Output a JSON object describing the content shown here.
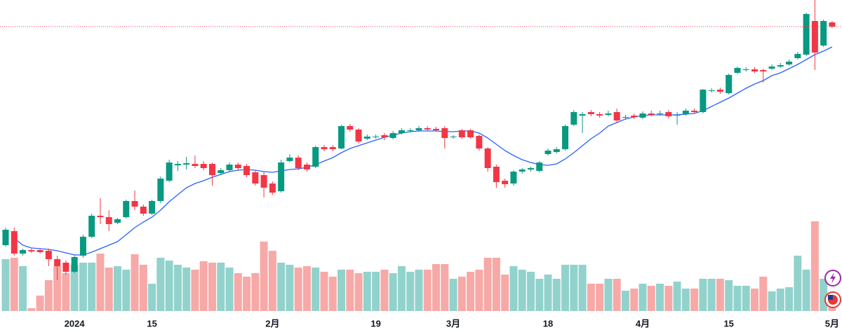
{
  "chart_data": {
    "type": "candlestick",
    "categories": [
      null,
      null,
      null,
      null,
      null,
      null,
      null,
      null,
      "2024",
      null,
      null,
      null,
      null,
      null,
      null,
      null,
      null,
      "15",
      null,
      null,
      null,
      null,
      null,
      null,
      null,
      null,
      null,
      null,
      null,
      null,
      null,
      "2月",
      null,
      null,
      null,
      null,
      null,
      null,
      null,
      null,
      null,
      null,
      null,
      "19",
      null,
      null,
      null,
      null,
      null,
      null,
      null,
      null,
      "3月",
      null,
      null,
      null,
      null,
      null,
      null,
      null,
      null,
      null,
      null,
      "18",
      null,
      null,
      null,
      null,
      null,
      null,
      null,
      null,
      null,
      null,
      "4月",
      null,
      null,
      null,
      null,
      null,
      null,
      null,
      null,
      null,
      "15",
      null,
      null,
      null,
      null,
      null,
      null,
      null,
      null,
      null,
      null,
      null,
      "5月"
    ],
    "open": [
      124,
      144,
      112,
      117,
      117,
      116,
      104,
      99,
      86,
      109,
      136,
      166,
      164,
      156,
      164,
      187,
      179,
      169,
      187,
      216,
      238,
      239,
      240,
      240,
      240,
      227,
      231,
      239,
      237,
      228,
      224,
      212,
      201,
      244,
      249,
      239,
      236,
      264,
      264,
      262,
      294,
      289,
      276,
      278,
      281,
      277,
      284,
      287,
      288,
      291,
      290,
      291,
      278,
      288,
      288,
      280,
      262,
      236,
      216,
      212,
      229,
      232,
      230,
      254,
      257,
      261,
      296,
      309,
      314,
      311,
      310,
      314,
      306,
      309,
      306,
      312,
      311,
      314,
      309,
      311,
      316,
      314,
      344,
      346,
      341,
      370,
      374,
      375,
      374,
      376,
      379,
      382,
      391,
      396,
      444,
      409,
      442
    ],
    "high": [
      149,
      149,
      119,
      119,
      119,
      119,
      109,
      102,
      109,
      139,
      169,
      191,
      174,
      163,
      189,
      202,
      182,
      189,
      222,
      246,
      244,
      250,
      252,
      244,
      242,
      234,
      242,
      242,
      240,
      231,
      229,
      215,
      246,
      254,
      252,
      242,
      266,
      267,
      267,
      296,
      297,
      291,
      282,
      282,
      284,
      287,
      291,
      291,
      294,
      294,
      293,
      294,
      281,
      290,
      290,
      282,
      264,
      239,
      219,
      231,
      234,
      236,
      244,
      262,
      264,
      296,
      317,
      314,
      317,
      314,
      316,
      319,
      310,
      312,
      315,
      316,
      316,
      317,
      314,
      319,
      319,
      347,
      348,
      349,
      369,
      379,
      378,
      378,
      376,
      382,
      384,
      389,
      400,
      456,
      474,
      446,
      444
    ],
    "low": [
      122,
      109,
      109,
      113,
      112,
      94,
      74,
      82,
      84,
      106,
      134,
      154,
      144,
      154,
      162,
      174,
      166,
      167,
      184,
      214,
      230,
      232,
      234,
      231,
      209,
      224,
      228,
      230,
      221,
      209,
      192,
      196,
      199,
      242,
      231,
      229,
      234,
      258,
      258,
      261,
      286,
      269,
      274,
      276,
      274,
      275,
      282,
      285,
      286,
      287,
      286,
      262,
      276,
      276,
      276,
      259,
      229,
      206,
      206,
      209,
      226,
      229,
      228,
      252,
      255,
      259,
      294,
      284,
      308,
      306,
      308,
      299,
      304,
      304,
      304,
      308,
      309,
      305,
      296,
      309,
      312,
      312,
      342,
      340,
      339,
      368,
      372,
      370,
      356,
      374,
      377,
      380,
      389,
      394,
      374,
      407,
      434
    ],
    "close": [
      146,
      112,
      117,
      115,
      114,
      104,
      94,
      86,
      107,
      136,
      166,
      164,
      154,
      161,
      187,
      179,
      169,
      187,
      219,
      242,
      240,
      241,
      237,
      234,
      224,
      231,
      239,
      234,
      224,
      212,
      206,
      199,
      242,
      249,
      234,
      232,
      264,
      261,
      261,
      294,
      289,
      272,
      279,
      279,
      278,
      284,
      288,
      288,
      291,
      289,
      288,
      277,
      279,
      278,
      278,
      262,
      234,
      214,
      211,
      229,
      232,
      234,
      242,
      259,
      261,
      294,
      314,
      311,
      311,
      309,
      312,
      302,
      307,
      307,
      312,
      310,
      312,
      308,
      310,
      316,
      314,
      346,
      345,
      343,
      367,
      377,
      375,
      372,
      372,
      379,
      381,
      386,
      397,
      454,
      399,
      444,
      436
    ],
    "volume": [
      74,
      76,
      64,
      4,
      22,
      44,
      64,
      54,
      66,
      69,
      69,
      82,
      62,
      64,
      59,
      81,
      66,
      39,
      76,
      72,
      66,
      62,
      59,
      71,
      69,
      69,
      62,
      54,
      49,
      54,
      99,
      86,
      69,
      66,
      62,
      64,
      62,
      56,
      49,
      59,
      59,
      54,
      56,
      56,
      59,
      54,
      64,
      56,
      59,
      59,
      67,
      67,
      46,
      49,
      56,
      59,
      76,
      76,
      52,
      64,
      59,
      56,
      46,
      52,
      46,
      66,
      66,
      66,
      39,
      39,
      46,
      46,
      29,
      32,
      39,
      36,
      39,
      36,
      42,
      32,
      32,
      46,
      46,
      46,
      44,
      36,
      36,
      32,
      49,
      28,
      32,
      34,
      79,
      59,
      128,
      46,
      24
    ],
    "ma": [
      null,
      134,
      124,
      120,
      119,
      118,
      116,
      113,
      110,
      110,
      114,
      119,
      124,
      129,
      139,
      149,
      157,
      164,
      174,
      186,
      196,
      206,
      212,
      216,
      221,
      225,
      229,
      231,
      232,
      231,
      229,
      228,
      230,
      232,
      233,
      235,
      239,
      244,
      249,
      256,
      262,
      266,
      270,
      274,
      278,
      281,
      284,
      286,
      287,
      287,
      287,
      286,
      286,
      287,
      287,
      284,
      277,
      268,
      259,
      252,
      246,
      242,
      239,
      238,
      240,
      247,
      256,
      266,
      276,
      284,
      294,
      299,
      304,
      307,
      309,
      310,
      310,
      310,
      310,
      311,
      312,
      316,
      322,
      328,
      334,
      341,
      348,
      354,
      359,
      366,
      370,
      376,
      382,
      389,
      396,
      401,
      407
    ],
    "ylim": [
      30,
      474
    ],
    "vlim": [
      0,
      444
    ],
    "up_color": "#089981",
    "down_color": "#f23645",
    "up_volume_color": "#92d2cc",
    "down_volume_color": "#f7a9a7",
    "ma_color": "#2962ff",
    "last_price_line": true
  }
}
